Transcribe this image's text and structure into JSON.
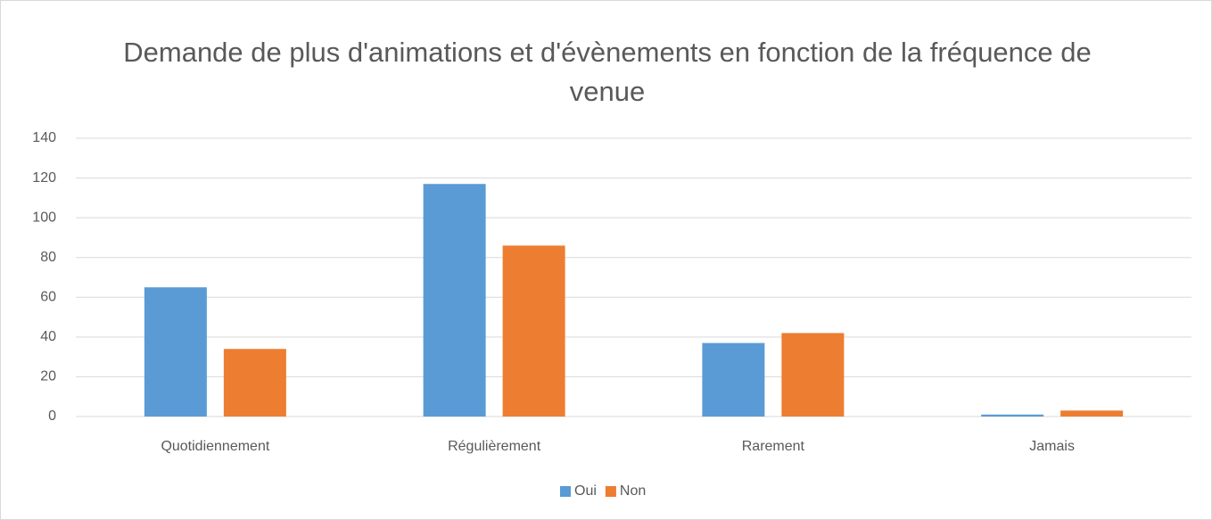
{
  "chart_data": {
    "type": "bar",
    "title": "Demande de plus d'animations et d'évènements en fonction de la fréquence de venue",
    "categories": [
      "Quotidiennement",
      "Régulièrement",
      "Rarement",
      "Jamais"
    ],
    "series": [
      {
        "name": "Oui",
        "color": "#5b9bd5",
        "values": [
          65,
          117,
          37,
          1
        ]
      },
      {
        "name": "Non",
        "color": "#ed7d31",
        "values": [
          34,
          86,
          42,
          3
        ]
      }
    ],
    "ylim": [
      0,
      140
    ],
    "yticks": [
      0,
      20,
      40,
      60,
      80,
      100,
      120,
      140
    ],
    "grid": true,
    "legend": "bottom"
  }
}
